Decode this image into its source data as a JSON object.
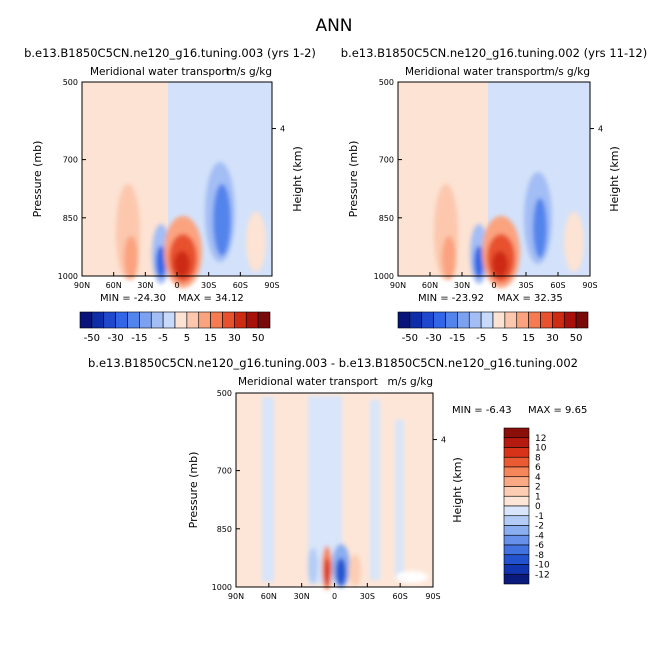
{
  "main_title": "ANN",
  "chart_data": [
    {
      "type": "heatmap",
      "title": "b.e13.B1850C5CN.ne120_g16.tuning.003 (yrs 1-2)",
      "subtitle_left": "Meridional water transport",
      "subtitle_right": "m/s g/kg",
      "ylabel": "Pressure (mb)",
      "ylabel_right": "Height (km)",
      "x_ticks": [
        "90N",
        "60N",
        "30N",
        "0",
        "30S",
        "60S",
        "90S"
      ],
      "y_ticks": [
        "500",
        "700",
        "850",
        "1000"
      ],
      "right_ticks": [
        "4"
      ],
      "min_label": "MIN = -24.30",
      "max_label": "MAX =  34.12",
      "colorbar": {
        "orientation": "horizontal",
        "labels": [
          "-50",
          "-30",
          "-15",
          "-5",
          "5",
          "15",
          "30",
          "50"
        ],
        "colors": [
          "#08147a",
          "#0e2ea8",
          "#1f48cf",
          "#3266e6",
          "#5384ec",
          "#7ba1f0",
          "#a3bdf5",
          "#c9d9f9",
          "#fde3d3",
          "#fcc7ad",
          "#fba37f",
          "#f67a52",
          "#e8512e",
          "#cd2c12",
          "#a8100a",
          "#7a0a0a"
        ]
      }
    },
    {
      "type": "heatmap",
      "title": "b.e13.B1850C5CN.ne120_g16.tuning.002 (yrs 11-12)",
      "subtitle_left": "Meridional water transport",
      "subtitle_right": "m/s g/kg",
      "ylabel": "Pressure (mb)",
      "ylabel_right": "Height (km)",
      "x_ticks": [
        "90N",
        "60N",
        "30N",
        "0",
        "30S",
        "60S",
        "90S"
      ],
      "y_ticks": [
        "500",
        "700",
        "850",
        "1000"
      ],
      "right_ticks": [
        "4"
      ],
      "min_label": "MIN = -23.92",
      "max_label": "MAX =  32.35",
      "colorbar": {
        "orientation": "horizontal",
        "labels": [
          "-50",
          "-30",
          "-15",
          "-5",
          "5",
          "15",
          "30",
          "50"
        ],
        "colors": [
          "#08147a",
          "#0e2ea8",
          "#1f48cf",
          "#3266e6",
          "#5384ec",
          "#7ba1f0",
          "#a3bdf5",
          "#c9d9f9",
          "#fde3d3",
          "#fcc7ad",
          "#fba37f",
          "#f67a52",
          "#e8512e",
          "#cd2c12",
          "#a8100a",
          "#7a0a0a"
        ]
      }
    },
    {
      "type": "heatmap",
      "title": "b.e13.B1850C5CN.ne120_g16.tuning.003 - b.e13.B1850C5CN.ne120_g16.tuning.002",
      "subtitle_left": "Meridional water transport",
      "subtitle_right": "m/s g/kg",
      "ylabel": "Pressure (mb)",
      "ylabel_right": "Height (km)",
      "x_ticks": [
        "90N",
        "60N",
        "30N",
        "0",
        "30S",
        "60S",
        "90S"
      ],
      "y_ticks": [
        "500",
        "700",
        "850",
        "1000"
      ],
      "right_ticks": [
        "4"
      ],
      "min_label": "MIN =  -6.43",
      "max_label": "MAX =   9.65",
      "colorbar": {
        "orientation": "vertical",
        "labels": [
          "12",
          "10",
          "8",
          "6",
          "4",
          "2",
          "1",
          "0",
          "-1",
          "-2",
          "-4",
          "-6",
          "-8",
          "-10",
          "-12"
        ],
        "colors": [
          "#8a0e0a",
          "#b51a10",
          "#d8321a",
          "#ea5a33",
          "#f58659",
          "#faa985",
          "#fdcdb3",
          "#fde6d8",
          "#d8e5fa",
          "#b3ccf6",
          "#8aaef0",
          "#6690ea",
          "#4271e0",
          "#2352cf",
          "#1234ae",
          "#0a1a7d"
        ]
      }
    }
  ]
}
